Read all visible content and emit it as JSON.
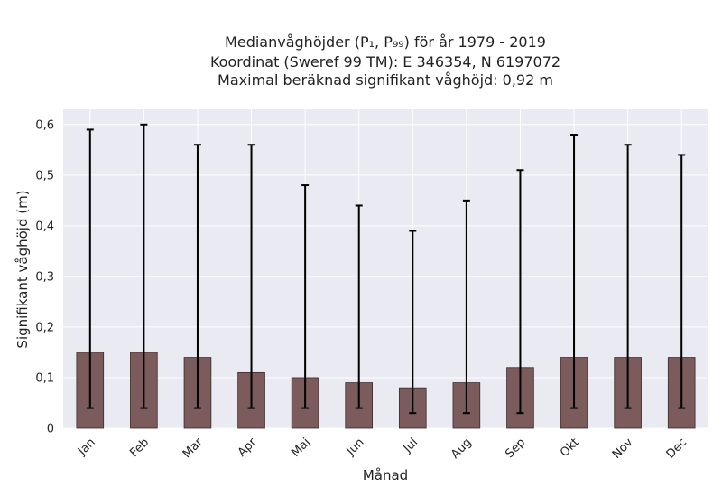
{
  "chart_data": {
    "type": "bar",
    "title_lines": [
      "Medianvåghöjder (P₁, P₉₉) för år 1979 - 2019",
      "Koordinat (Sweref 99 TM): E 346354, N 6197072",
      "Maximal beräknad signifikant våghöjd: 0,92 m"
    ],
    "xlabel": "Månad",
    "ylabel": "Signifikant våghöjd (m)",
    "categories": [
      "Jan",
      "Feb",
      "Mar",
      "Apr",
      "Maj",
      "Jun",
      "Jul",
      "Aug",
      "Sep",
      "Okt",
      "Nov",
      "Dec"
    ],
    "values": [
      0.15,
      0.15,
      0.14,
      0.11,
      0.1,
      0.09,
      0.08,
      0.09,
      0.12,
      0.14,
      0.14,
      0.14
    ],
    "error_low": [
      0.04,
      0.04,
      0.04,
      0.04,
      0.04,
      0.04,
      0.03,
      0.03,
      0.03,
      0.04,
      0.04,
      0.04
    ],
    "error_high": [
      0.59,
      0.6,
      0.56,
      0.56,
      0.48,
      0.44,
      0.39,
      0.45,
      0.51,
      0.58,
      0.56,
      0.54
    ],
    "ylim": [
      0,
      0.63
    ],
    "yticks": [
      0,
      0.1,
      0.2,
      0.3,
      0.4,
      0.5,
      0.6
    ],
    "ytick_labels": [
      "0",
      "0,1",
      "0,2",
      "0,3",
      "0,4",
      "0,5",
      "0,6"
    ],
    "grid": true,
    "colors": {
      "bar": "#7b5b5b",
      "bar_edge": "#3a2a2a",
      "error_bar": "#000000",
      "plot_background": "#eaeaf2",
      "grid": "#ffffff"
    }
  }
}
